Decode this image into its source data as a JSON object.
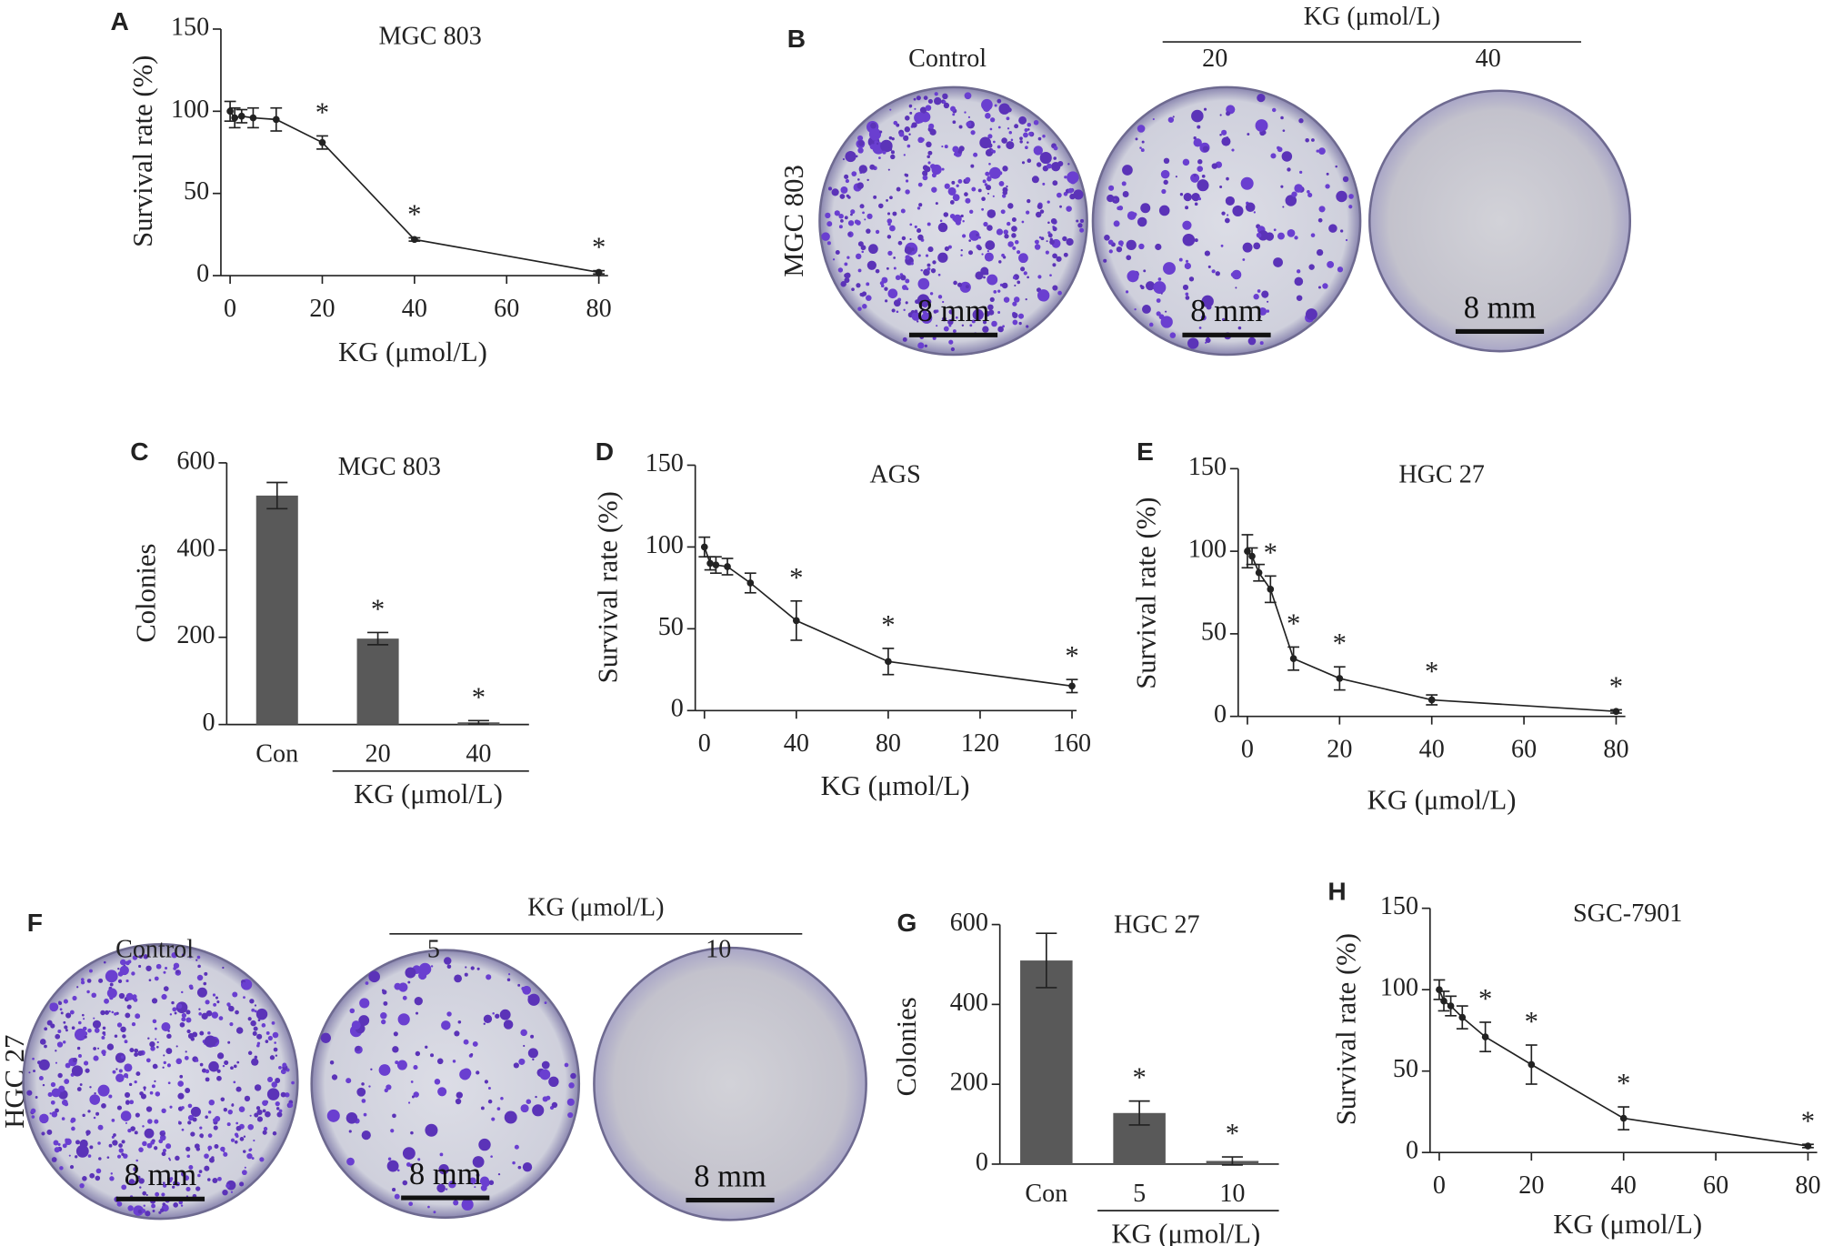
{
  "chart_data": [
    {
      "type": "line",
      "letter": "A",
      "title": "MGC 803",
      "xlabel": "KG (μmol/L)",
      "ylabel": "Survival rate (%)",
      "x": [
        0,
        1,
        2.5,
        5,
        10,
        20,
        40,
        80
      ],
      "values": [
        100,
        96,
        97,
        96,
        95,
        81,
        22,
        2
      ],
      "errors": [
        6,
        6,
        4,
        6,
        7,
        4,
        1,
        1
      ],
      "xlim": [
        -2,
        82
      ],
      "xticks": [
        0,
        20,
        40,
        60,
        80
      ],
      "ylim": [
        0,
        150
      ],
      "yticks": [
        0,
        50,
        100,
        150
      ],
      "color": "#222222",
      "annotations": [
        {
          "at": 20,
          "text": "*"
        },
        {
          "at": 40,
          "text": "*"
        },
        {
          "at": 80,
          "text": "*"
        }
      ]
    },
    {
      "type": "bar",
      "letter": "C",
      "title": "MGC 803",
      "xlabel": "KG (μmol/L)",
      "ylabel": "Colonies",
      "categories": [
        "Con",
        "20",
        "40"
      ],
      "values": [
        525,
        197,
        5
      ],
      "errors": [
        30,
        14,
        4
      ],
      "ylim": [
        0,
        600
      ],
      "yticks": [
        0,
        200,
        400,
        600
      ],
      "color": "#595959",
      "annotations": [
        {
          "at": "20",
          "text": "*"
        },
        {
          "at": "40",
          "text": "*"
        }
      ]
    },
    {
      "type": "line",
      "letter": "D",
      "title": "AGS",
      "xlabel": "KG (μmol/L)",
      "ylabel": "Survival rate (%)",
      "x": [
        0,
        2.5,
        5,
        10,
        20,
        40,
        80,
        160
      ],
      "values": [
        100,
        90,
        89,
        88,
        78,
        55,
        30,
        15
      ],
      "errors": [
        6,
        4,
        5,
        5,
        6,
        12,
        8,
        4
      ],
      "xlim": [
        -4,
        162
      ],
      "xticks": [
        0,
        40,
        80,
        120,
        160
      ],
      "ylim": [
        0,
        150
      ],
      "yticks": [
        0,
        50,
        100,
        150
      ],
      "color": "#222222",
      "annotations": [
        {
          "at": 40,
          "text": "*"
        },
        {
          "at": 80,
          "text": "*"
        },
        {
          "at": 160,
          "text": "*"
        }
      ]
    },
    {
      "type": "line",
      "letter": "E",
      "title": "HGC 27",
      "xlabel": "KG (μmol/L)",
      "ylabel": "Survival rate (%)",
      "x": [
        0,
        1,
        2.5,
        5,
        10,
        20,
        40,
        80
      ],
      "values": [
        100,
        97,
        87,
        77,
        35,
        23,
        10,
        3
      ],
      "errors": [
        10,
        5,
        5,
        8,
        7,
        7,
        3,
        1
      ],
      "xlim": [
        -2,
        82
      ],
      "xticks": [
        0,
        20,
        40,
        60,
        80
      ],
      "ylim": [
        0,
        150
      ],
      "yticks": [
        0,
        50,
        100,
        150
      ],
      "color": "#222222",
      "annotations": [
        {
          "at": 5,
          "text": "*"
        },
        {
          "at": 10,
          "text": "*"
        },
        {
          "at": 20,
          "text": "*"
        },
        {
          "at": 40,
          "text": "*"
        },
        {
          "at": 80,
          "text": "*"
        }
      ]
    },
    {
      "type": "bar",
      "letter": "G",
      "title": "HGC 27",
      "xlabel": "KG (μmol/L)",
      "ylabel": "Colonies",
      "categories": [
        "Con",
        "5",
        "10"
      ],
      "values": [
        510,
        128,
        8
      ],
      "errors": [
        68,
        30,
        10
      ],
      "ylim": [
        0,
        600
      ],
      "yticks": [
        0,
        200,
        400,
        600
      ],
      "color": "#595959",
      "annotations": [
        {
          "at": "5",
          "text": "*"
        },
        {
          "at": "10",
          "text": "*"
        }
      ]
    },
    {
      "type": "line",
      "letter": "H",
      "title": "SGC-7901",
      "xlabel": "KG (μmol/L)",
      "ylabel": "Survival rate (%)",
      "x": [
        0,
        1,
        2.5,
        5,
        10,
        20,
        40,
        80
      ],
      "values": [
        100,
        93,
        90,
        83,
        71,
        54,
        21,
        4
      ],
      "errors": [
        6,
        6,
        6,
        7,
        9,
        12,
        7,
        1
      ],
      "xlim": [
        -2,
        82
      ],
      "xticks": [
        0,
        20,
        40,
        60,
        80
      ],
      "ylim": [
        0,
        150
      ],
      "yticks": [
        0,
        50,
        100,
        150
      ],
      "color": "#222222",
      "annotations": [
        {
          "at": 10,
          "text": "*"
        },
        {
          "at": 20,
          "text": "*"
        },
        {
          "at": 40,
          "text": "*"
        },
        {
          "at": 80,
          "text": "*"
        }
      ]
    }
  ],
  "image_panels": [
    {
      "letter": "B",
      "row_label": "MGC 803",
      "group_label": "KG (μmol/L)",
      "dishes": [
        {
          "label": "Control",
          "scale": "8 mm"
        },
        {
          "label": "20",
          "scale": "8 mm"
        },
        {
          "label": "40",
          "scale": "8 mm"
        }
      ]
    },
    {
      "letter": "F",
      "row_label": "HGC 27",
      "group_label": "KG (μmol/L)",
      "dishes": [
        {
          "label": "Control",
          "scale": "8 mm"
        },
        {
          "label": "5",
          "scale": "8 mm"
        },
        {
          "label": "10",
          "scale": "8 mm"
        }
      ]
    }
  ]
}
